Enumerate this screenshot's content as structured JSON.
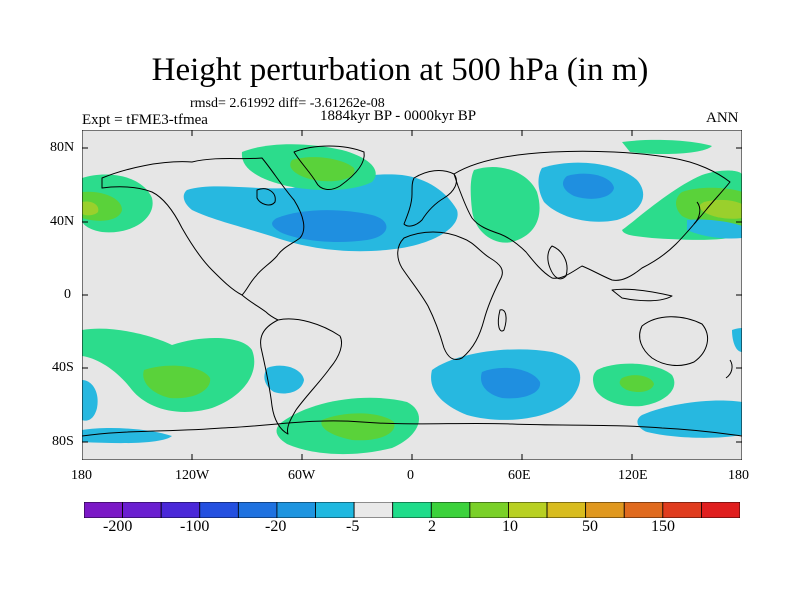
{
  "title": "Height perturbation at 500 hPa (in m)",
  "stats": "rmsd= 2.61992 diff= -3.61262e-08",
  "period": "1884kyr BP - 0000kyr BP",
  "experiment": "Expt = tFME3-tfmea",
  "season": "ANN",
  "lat_labels": [
    "80N",
    "40N",
    "0",
    "40S",
    "80S"
  ],
  "lon_labels": [
    "180",
    "120W",
    "60W",
    "0",
    "60E",
    "120E",
    "180"
  ],
  "colorbar": {
    "labels": [
      "-200",
      "-100",
      "-20",
      "-5",
      "2",
      "10",
      "50",
      "150"
    ],
    "colors": [
      "#7b18c6",
      "#6a1fd0",
      "#4a28d8",
      "#2450e0",
      "#1f72e0",
      "#1e95e0",
      "#1fb8e0",
      "#e9e9e9",
      "#1fdc8a",
      "#3cd23c",
      "#7ad028",
      "#b8d022",
      "#d8bc1f",
      "#e0981f",
      "#e06a1e",
      "#e03c1e",
      "#e01e1e"
    ]
  },
  "map_fill_colors": {
    "background": "#e6e6e6",
    "light_blue": "#27b8e0",
    "mid_blue": "#1f8fe0",
    "light_green": "#2cdc8c",
    "mid_green": "#5ad23a",
    "yellow_green": "#9ad02c"
  }
}
